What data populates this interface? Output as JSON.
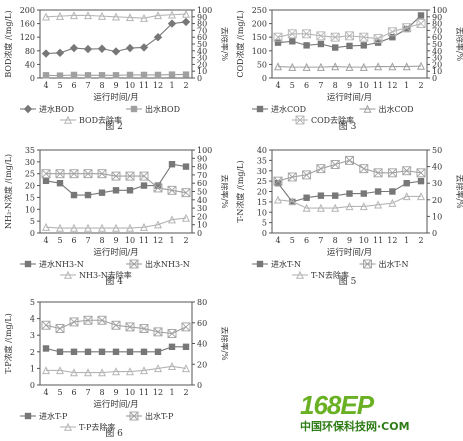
{
  "watermark": {
    "logo": "168EP",
    "sub": "中国环保科技网·COM"
  },
  "chart_data": [
    {
      "type": "line",
      "caption": "图 2",
      "ylabel": "BOD浓度 /(mg/L)",
      "y2label": "去除率/%",
      "xlabel": "运行时间/月",
      "categories": [
        "4",
        "5",
        "6",
        "7",
        "8",
        "9",
        "10",
        "11",
        "12",
        "1",
        "2"
      ],
      "ylim": [
        0,
        200
      ],
      "yticks": [
        0,
        40,
        80,
        120,
        160,
        200
      ],
      "y2lim": [
        0,
        100
      ],
      "y2ticks": [
        0,
        10,
        20,
        30,
        40,
        50,
        60,
        70,
        80,
        90,
        100
      ],
      "series": [
        {
          "name": "进水BOD",
          "axis": "left",
          "marker": "diamond",
          "values": [
            72,
            74,
            88,
            85,
            86,
            78,
            88,
            90,
            120,
            160,
            165
          ]
        },
        {
          "name": "出水BOD",
          "axis": "left",
          "marker": "square",
          "values": [
            8,
            7,
            9,
            8,
            8,
            8,
            9,
            9,
            9,
            10,
            10
          ]
        },
        {
          "name": "BOD去除率",
          "axis": "right",
          "marker": "triangle",
          "values": [
            90,
            91,
            92,
            92,
            91,
            90,
            89,
            88,
            92,
            93,
            94
          ]
        }
      ]
    },
    {
      "type": "line",
      "caption": "图 3",
      "ylabel": "COD浓度 /(mg/L)",
      "y2label": "去除率/%",
      "xlabel": "运行时间/月",
      "categories": [
        "4",
        "5",
        "6",
        "7",
        "8",
        "9",
        "10",
        "11",
        "12",
        "1",
        "2"
      ],
      "ylim": [
        0,
        250
      ],
      "yticks": [
        0,
        50,
        100,
        150,
        200,
        250
      ],
      "y2lim": [
        0,
        100
      ],
      "y2ticks": [
        0,
        10,
        20,
        30,
        40,
        50,
        60,
        70,
        80,
        90,
        100
      ],
      "series": [
        {
          "name": "进水COD",
          "axis": "left",
          "marker": "square",
          "values": [
            130,
            135,
            120,
            125,
            112,
            118,
            120,
            130,
            150,
            180,
            230
          ]
        },
        {
          "name": "出水COD",
          "axis": "left",
          "marker": "triangle",
          "values": [
            42,
            40,
            40,
            40,
            42,
            40,
            40,
            42,
            42,
            42,
            44
          ]
        },
        {
          "name": "COD去除率",
          "axis": "right",
          "marker": "x",
          "values": [
            60,
            65,
            65,
            62,
            60,
            62,
            60,
            58,
            68,
            74,
            80
          ]
        }
      ]
    },
    {
      "type": "line",
      "caption": "图 4",
      "ylabel": "NH₃-N浓度 /(mg/L)",
      "y2label": "去除率/%",
      "xlabel": "运行时间/月",
      "categories": [
        "4",
        "5",
        "6",
        "7",
        "8",
        "9",
        "10",
        "11",
        "12",
        "1",
        "2"
      ],
      "ylim": [
        0,
        35
      ],
      "yticks": [
        0,
        5,
        10,
        15,
        20,
        25,
        30,
        35
      ],
      "y2lim": [
        0,
        100
      ],
      "y2ticks": [
        0,
        10,
        20,
        30,
        40,
        50,
        60,
        70,
        80,
        90,
        100
      ],
      "series": [
        {
          "name": "进水NH3-N",
          "axis": "left",
          "marker": "square",
          "values": [
            22,
            21,
            16,
            16,
            17,
            18,
            18,
            20,
            20,
            29,
            28
          ]
        },
        {
          "name": "出水NH3-N",
          "axis": "left",
          "marker": "x",
          "values": [
            25,
            25,
            25,
            25,
            25,
            24,
            24,
            24,
            19,
            18,
            17
          ]
        },
        {
          "name": "NH3-N去除率",
          "axis": "right",
          "marker": "triangle",
          "values": [
            7,
            6,
            6,
            6,
            6,
            6,
            6,
            7,
            10,
            16,
            18
          ]
        }
      ]
    },
    {
      "type": "line",
      "caption": "图 5",
      "ylabel": "T-N浓度 /(mg/L)",
      "y2label": "去除率/%",
      "xlabel": "运行时间/月",
      "categories": [
        "4",
        "5",
        "6",
        "7",
        "8",
        "9",
        "10",
        "11",
        "12",
        "1",
        "2"
      ],
      "ylim": [
        0,
        40
      ],
      "yticks": [
        0,
        5,
        10,
        15,
        20,
        25,
        30,
        35,
        40
      ],
      "y2lim": [
        0,
        50
      ],
      "y2ticks": [
        0,
        10,
        20,
        30,
        40,
        50
      ],
      "series": [
        {
          "name": "进水T-N",
          "axis": "left",
          "marker": "square",
          "values": [
            24,
            15,
            17,
            18,
            18,
            19,
            19,
            20,
            20,
            24,
            25
          ]
        },
        {
          "name": "出水T-N",
          "axis": "left",
          "marker": "x",
          "values": [
            25,
            27,
            28,
            31,
            33,
            35,
            31,
            29,
            29,
            30,
            29
          ]
        },
        {
          "name": "T-N去除率",
          "axis": "right",
          "marker": "triangle",
          "values": [
            20,
            19,
            15,
            15,
            15,
            16,
            16,
            17,
            18,
            22,
            22
          ]
        }
      ]
    },
    {
      "type": "line",
      "caption": "图 6",
      "ylabel": "T-P浓度 /(mg/L)",
      "y2label": "去除率/%",
      "xlabel": "运行时间/月",
      "categories": [
        "4",
        "5",
        "6",
        "7",
        "8",
        "9",
        "10",
        "11",
        "12",
        "1",
        "2"
      ],
      "ylim": [
        0,
        5
      ],
      "yticks": [
        0,
        1,
        2,
        3,
        4,
        5
      ],
      "y2lim": [
        0,
        80
      ],
      "y2ticks": [
        0,
        20,
        40,
        60,
        80
      ],
      "series": [
        {
          "name": "进水T-P",
          "axis": "left",
          "marker": "square",
          "values": [
            2.2,
            2.0,
            2.0,
            2.0,
            2.0,
            2.0,
            2.0,
            2.0,
            2.0,
            2.3,
            2.3
          ]
        },
        {
          "name": "出水T-P",
          "axis": "left",
          "marker": "x",
          "values": [
            3.6,
            3.4,
            3.8,
            3.9,
            3.9,
            3.6,
            3.5,
            3.4,
            3.2,
            3.1,
            3.5
          ]
        },
        {
          "name": "T-P去除率",
          "axis": "right",
          "marker": "triangle",
          "values": [
            14,
            14,
            12,
            12,
            12,
            13,
            13,
            14,
            16,
            18,
            16
          ]
        }
      ]
    }
  ]
}
